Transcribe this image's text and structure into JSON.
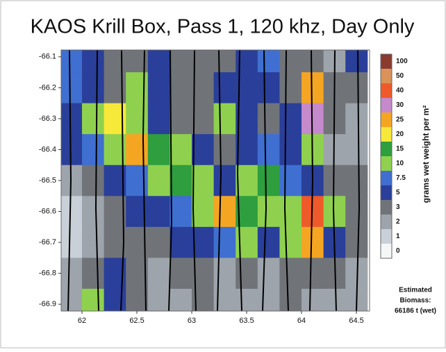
{
  "chart_data": {
    "type": "contour",
    "title": "KAOS Krill Box, Pass 1, 120 khz, Day Only",
    "xlim": [
      61.81,
      64.62
    ],
    "ylim": [
      -66.922,
      -66.078
    ],
    "xticks": [
      62,
      62.5,
      63,
      63.5,
      64,
      64.5
    ],
    "yticks": [
      -66.1,
      -66.2,
      -66.3,
      -66.4,
      -66.5,
      -66.6,
      -66.7,
      -66.8,
      -66.9
    ],
    "x": [
      61.9,
      62.1,
      62.3,
      62.5,
      62.7,
      62.9,
      63.1,
      63.3,
      63.5,
      63.7,
      63.9,
      64.1,
      64.3,
      64.5
    ],
    "y": [
      -66.1,
      -66.2,
      -66.3,
      -66.4,
      -66.5,
      -66.6,
      -66.7,
      -66.8,
      -66.9
    ],
    "z": [
      [
        7.5,
        5,
        3,
        3,
        5,
        3,
        3,
        3,
        5,
        7.5,
        3,
        3,
        2,
        5
      ],
      [
        7.5,
        5,
        3,
        10,
        5,
        3,
        3,
        5,
        5,
        5,
        3,
        25,
        3,
        3
      ],
      [
        5,
        10,
        20,
        10,
        5,
        3,
        3,
        10,
        5,
        3,
        5,
        30,
        3,
        2
      ],
      [
        5,
        7.5,
        10,
        25,
        15,
        10,
        5,
        3,
        5,
        7.5,
        5,
        10,
        2,
        2
      ],
      [
        2,
        3,
        5,
        7.5,
        10,
        15,
        10,
        5,
        10,
        15,
        7.5,
        5,
        3,
        3
      ],
      [
        1,
        2,
        3,
        5,
        5,
        7.5,
        10,
        25,
        15,
        10,
        10,
        40,
        10,
        3
      ],
      [
        1,
        2,
        3,
        3,
        3,
        5,
        5,
        7.5,
        10,
        5,
        10,
        25,
        5,
        3
      ],
      [
        2,
        3,
        5,
        3,
        2,
        3,
        3,
        2,
        3,
        2,
        3,
        3,
        3,
        2
      ],
      [
        2,
        10,
        5,
        3,
        2,
        2,
        3,
        2,
        2,
        2,
        3,
        2,
        2,
        2
      ]
    ],
    "colorbar": {
      "label": "grams wet weight per m²",
      "levels": [
        0,
        1,
        2,
        3,
        5,
        7.5,
        10,
        15,
        20,
        25,
        30,
        40,
        50,
        100
      ],
      "colors": [
        "#f4f6f8",
        "#c9d0d8",
        "#9ea4ab",
        "#707479",
        "#2a3f9a",
        "#3f6fd1",
        "#8fd14f",
        "#2e9e3e",
        "#f7e93a",
        "#f4a623",
        "#c58acb",
        "#ee5a2a",
        "#d9935a",
        "#8b3a2e"
      ]
    },
    "annotation": [
      "Estimated",
      "Biomass:",
      "66186 t (wet)"
    ]
  }
}
